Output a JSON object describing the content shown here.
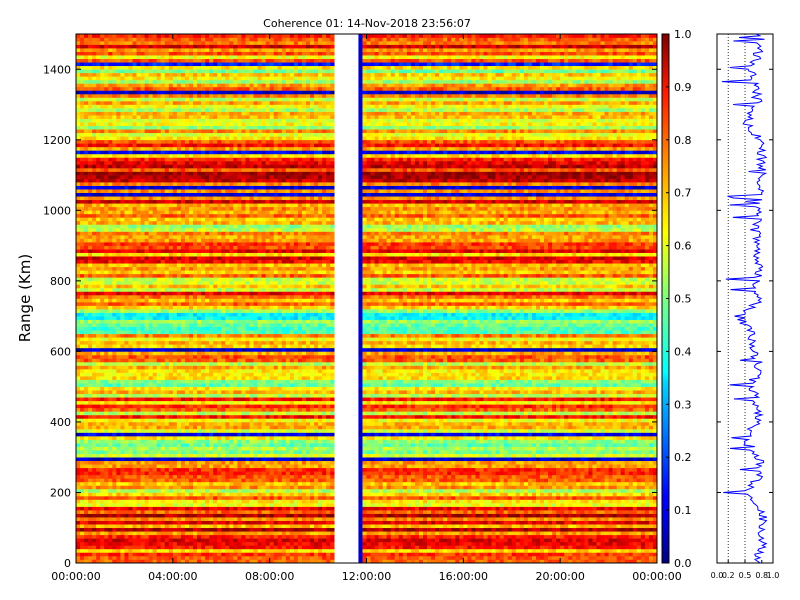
{
  "chart_data": [
    {
      "type": "heatmap",
      "title": "Coherence 01: 14-Nov-2018 23:56:07",
      "ylabel": "Range (Km)",
      "xlim": [
        "00:00:00",
        "24:00:00"
      ],
      "ylim": [
        0,
        1500
      ],
      "x_ticks": [
        "00:00:00",
        "04:00:00",
        "08:00:00",
        "12:00:00",
        "16:00:00",
        "20:00:00",
        "00:00:00"
      ],
      "y_ticks": [
        "0",
        "200",
        "400",
        "600",
        "800",
        "1000",
        "1200",
        "1400"
      ],
      "colormap": "jet",
      "colorbar": {
        "range": [
          0.0,
          1.0
        ],
        "ticks": [
          "0.0",
          "0.1",
          "0.2",
          "0.3",
          "0.4",
          "0.5",
          "0.6",
          "0.7",
          "0.8",
          "0.9",
          "1.0"
        ]
      },
      "data_gap": {
        "start": "10:45:00",
        "end": "11:40:00"
      },
      "low_coherence_column": {
        "start": "11:40:00",
        "end": "11:55:00",
        "value": 0.05
      },
      "range_profile_coherence": [
        {
          "range": 0,
          "value": 0.72
        },
        {
          "range": 50,
          "value": 0.8
        },
        {
          "range": 100,
          "value": 0.83
        },
        {
          "range": 150,
          "value": 0.8
        },
        {
          "range": 200,
          "value": 0.55
        },
        {
          "range": 250,
          "value": 0.78
        },
        {
          "range": 300,
          "value": 0.74
        },
        {
          "range": 350,
          "value": 0.5
        },
        {
          "range": 400,
          "value": 0.72
        },
        {
          "range": 450,
          "value": 0.73
        },
        {
          "range": 500,
          "value": 0.6
        },
        {
          "range": 550,
          "value": 0.75
        },
        {
          "range": 600,
          "value": 0.67
        },
        {
          "range": 650,
          "value": 0.6
        },
        {
          "range": 700,
          "value": 0.4
        },
        {
          "range": 750,
          "value": 0.78
        },
        {
          "range": 800,
          "value": 0.7
        },
        {
          "range": 850,
          "value": 0.75
        },
        {
          "range": 900,
          "value": 0.72
        },
        {
          "range": 950,
          "value": 0.68
        },
        {
          "range": 1000,
          "value": 0.76
        },
        {
          "range": 1050,
          "value": 0.77
        },
        {
          "range": 1100,
          "value": 0.8
        },
        {
          "range": 1150,
          "value": 0.8
        },
        {
          "range": 1200,
          "value": 0.78
        },
        {
          "range": 1250,
          "value": 0.5
        },
        {
          "range": 1300,
          "value": 0.73
        },
        {
          "range": 1350,
          "value": 0.68
        },
        {
          "range": 1400,
          "value": 0.62
        },
        {
          "range": 1450,
          "value": 0.75
        },
        {
          "range": 1500,
          "value": 0.78
        }
      ],
      "profile_xlim": [
        0.0,
        1.0
      ],
      "profile_x_ticks": [
        "0.0",
        "0.2",
        "0.5",
        "0.8",
        "1.0"
      ],
      "profile_line_color": "#0000ff"
    }
  ]
}
